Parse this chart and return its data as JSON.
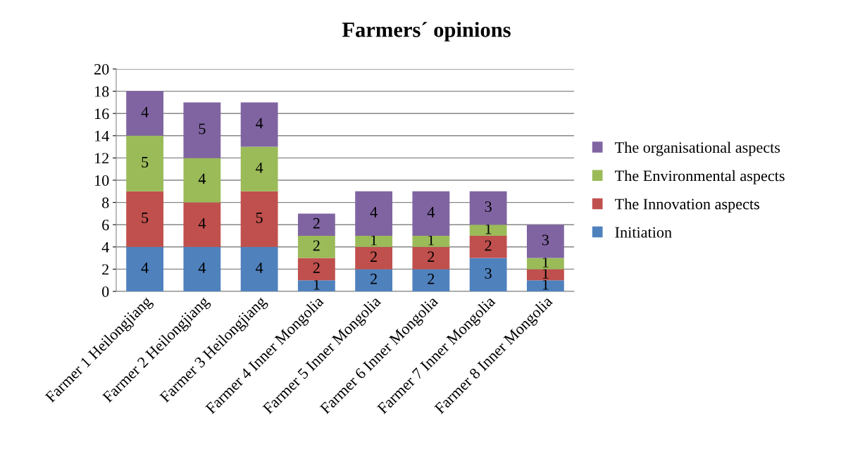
{
  "chart_data": {
    "type": "bar",
    "title": "Farmers´ opinions",
    "stacked": true,
    "data_labels": true,
    "grid": "y",
    "legend": "right",
    "categories": [
      "Farmer 1 Heilongjiang",
      "Farmer 2 Heilongjiang",
      "Farmer 3 Heilongjiang",
      "Farmer 4 Inner Mongolia",
      "Farmer 5 Inner Mongolia",
      "Farmer 6 Inner Mongolia",
      "Farmer 7 Inner Mongolia",
      "Farmer 8 Inner Mongolia"
    ],
    "ylim": [
      0,
      20
    ],
    "yticks": [
      0,
      2,
      4,
      6,
      8,
      10,
      12,
      14,
      16,
      18,
      20
    ],
    "series": [
      {
        "name": "Initiation",
        "color": "#4f81bd",
        "values": [
          4,
          4,
          4,
          1,
          2,
          2,
          3,
          1
        ]
      },
      {
        "name": "The Innovation aspects",
        "color": "#c0504d",
        "values": [
          5,
          4,
          5,
          2,
          2,
          2,
          2,
          1
        ]
      },
      {
        "name": "The Environmental aspects",
        "color": "#9bbb59",
        "values": [
          5,
          4,
          4,
          2,
          1,
          1,
          1,
          1
        ]
      },
      {
        "name": "The organisational aspects",
        "color": "#8064a2",
        "values": [
          4,
          5,
          4,
          2,
          4,
          4,
          3,
          3
        ]
      }
    ]
  }
}
